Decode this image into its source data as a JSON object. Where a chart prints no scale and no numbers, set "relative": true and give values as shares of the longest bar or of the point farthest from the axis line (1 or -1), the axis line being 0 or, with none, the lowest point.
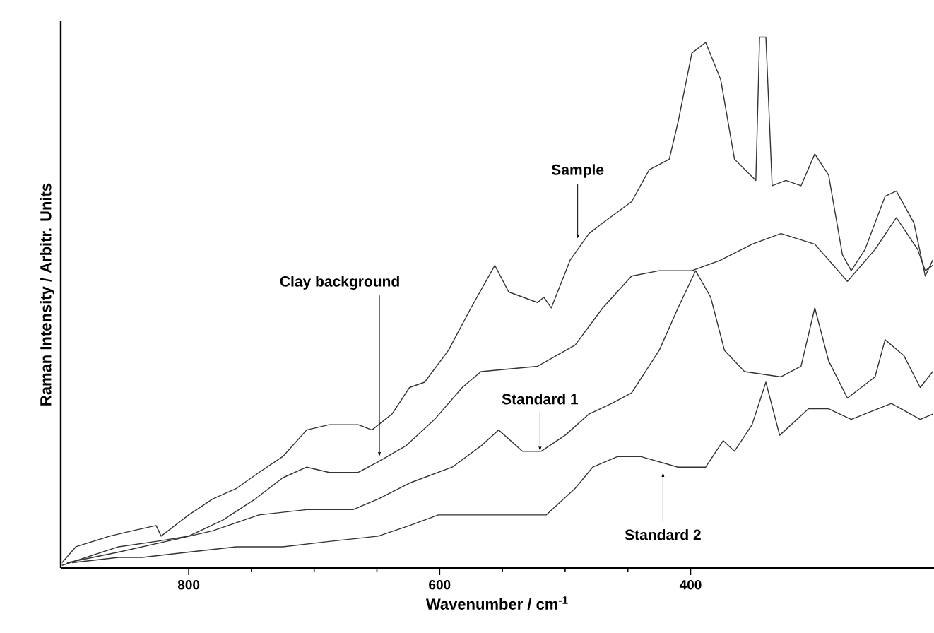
{
  "chart_data": {
    "type": "line",
    "relative": true,
    "xlabel": "Wavenumber / cm$^{-1}$",
    "ylabel": "Raman Intensity / Arbitr. Units",
    "xlim": [
      902,
      206
    ],
    "xticks": [
      800,
      600,
      400
    ],
    "series": [
      {
        "color": "#333333",
        "x": [
          901,
          890,
          863,
          845,
          826,
          822,
          800,
          781,
          762,
          744,
          725,
          706,
          688,
          665,
          654,
          638,
          624,
          612,
          593,
          575,
          556,
          545,
          522,
          517,
          511,
          496,
          481,
          470,
          447,
          433,
          417,
          410,
          399,
          388,
          376,
          365,
          348,
          345,
          340,
          335,
          324,
          312,
          301,
          290,
          279,
          272,
          261,
          245,
          236,
          222,
          213,
          207
        ],
        "values": [
          0.01,
          0.04,
          0.06,
          0.07,
          0.08,
          0.06,
          0.1,
          0.13,
          0.15,
          0.18,
          0.21,
          0.26,
          0.27,
          0.27,
          0.26,
          0.29,
          0.34,
          0.35,
          0.41,
          0.49,
          0.57,
          0.52,
          0.5,
          0.51,
          0.49,
          0.58,
          0.63,
          0.65,
          0.69,
          0.75,
          0.77,
          0.84,
          0.97,
          0.99,
          0.92,
          0.77,
          0.73,
          1.0,
          1.0,
          0.72,
          0.73,
          0.72,
          0.78,
          0.74,
          0.59,
          0.56,
          0.6,
          0.7,
          0.71,
          0.65,
          0.55,
          0.58
        ]
      },
      {
        "color": "#333333",
        "x": [
          901,
          856,
          826,
          800,
          773,
          747,
          725,
          706,
          688,
          665,
          649,
          627,
          604,
          582,
          567,
          522,
          492,
          470,
          447,
          425,
          399,
          376,
          351,
          328,
          301,
          275,
          253,
          236,
          219,
          213,
          207
        ],
        "values": [
          0.005,
          0.04,
          0.05,
          0.06,
          0.09,
          0.13,
          0.17,
          0.19,
          0.18,
          0.18,
          0.2,
          0.23,
          0.28,
          0.34,
          0.37,
          0.38,
          0.42,
          0.49,
          0.55,
          0.56,
          0.56,
          0.58,
          0.61,
          0.63,
          0.61,
          0.54,
          0.6,
          0.66,
          0.6,
          0.56,
          0.57
        ]
      },
      {
        "color": "#333333",
        "x": [
          897,
          856,
          818,
          781,
          744,
          706,
          669,
          649,
          624,
          590,
          567,
          553,
          534,
          519,
          500,
          481,
          463,
          447,
          425,
          410,
          396,
          384,
          373,
          357,
          328,
          312,
          301,
          290,
          275,
          253,
          245,
          230,
          217,
          207
        ],
        "values": [
          0.01,
          0.03,
          0.05,
          0.07,
          0.1,
          0.11,
          0.11,
          0.13,
          0.16,
          0.19,
          0.23,
          0.26,
          0.22,
          0.22,
          0.25,
          0.29,
          0.31,
          0.33,
          0.41,
          0.49,
          0.56,
          0.51,
          0.41,
          0.37,
          0.36,
          0.38,
          0.49,
          0.39,
          0.32,
          0.36,
          0.43,
          0.4,
          0.34,
          0.37
        ]
      },
      {
        "color": "#333333",
        "x": [
          893,
          856,
          837,
          800,
          762,
          725,
          688,
          649,
          624,
          601,
          590,
          553,
          515,
          492,
          478,
          458,
          440,
          410,
          388,
          374,
          365,
          351,
          340,
          329,
          306,
          290,
          272,
          240,
          217,
          207
        ],
        "values": [
          0.01,
          0.02,
          0.02,
          0.03,
          0.04,
          0.04,
          0.05,
          0.06,
          0.08,
          0.1,
          0.1,
          0.1,
          0.1,
          0.15,
          0.19,
          0.21,
          0.21,
          0.19,
          0.19,
          0.24,
          0.22,
          0.27,
          0.35,
          0.25,
          0.3,
          0.3,
          0.28,
          0.31,
          0.28,
          0.29
        ]
      }
    ],
    "annotations": [
      {
        "text": "Sample",
        "x": 490,
        "y": 0.62
      },
      {
        "text": "Clay background",
        "x": 648,
        "y": 0.21
      },
      {
        "text": "Standard 1",
        "x": 520,
        "y": 0.22
      },
      {
        "text": "Standard 2",
        "x": 422,
        "y": 0.18
      }
    ]
  }
}
